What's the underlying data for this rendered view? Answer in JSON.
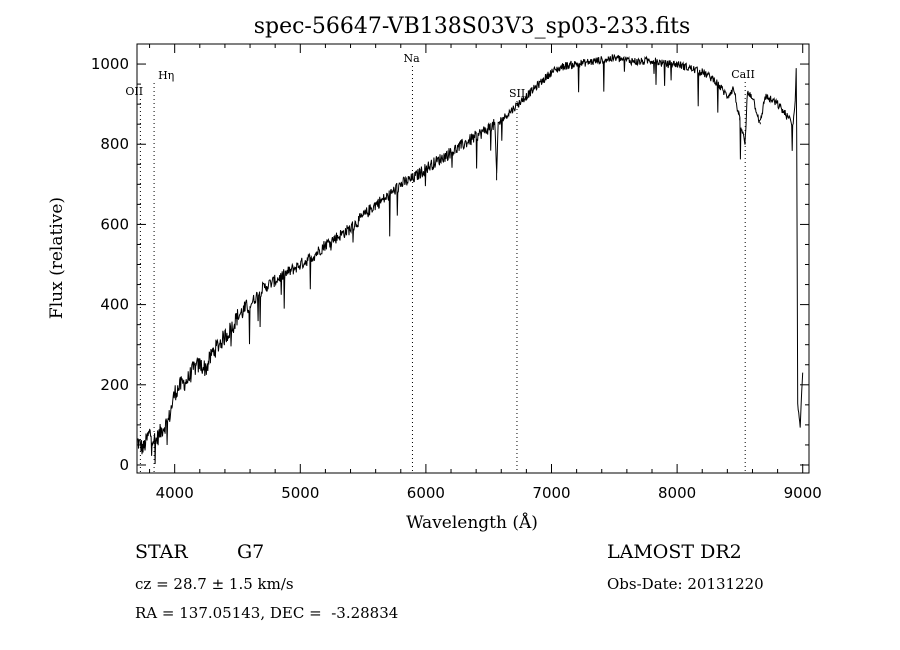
{
  "chart_data": {
    "type": "line",
    "title": "spec-56647-VB138S03V3_sp03-233.fits",
    "xlabel": "Wavelength (Å)",
    "ylabel": "Flux (relative)",
    "xlim": [
      3700,
      9050
    ],
    "ylim": [
      -20,
      1050
    ],
    "xticks": [
      4000,
      5000,
      6000,
      7000,
      8000,
      9000
    ],
    "yticks": [
      0,
      200,
      400,
      600,
      800,
      1000
    ],
    "grid": false,
    "series": [
      {
        "x": [
          3700,
          3750,
          3800,
          3850,
          3900,
          3950,
          4000,
          4050,
          4100,
          4150,
          4200,
          4250,
          4300,
          4350,
          4400,
          4450,
          4500,
          4600,
          4700,
          4800,
          4900,
          5000,
          5100,
          5200,
          5300,
          5400,
          5500,
          5600,
          5700,
          5800,
          5900,
          6000,
          6100,
          6200,
          6300,
          6400,
          6500,
          6550,
          6563,
          6575,
          6600,
          6700,
          6800,
          6900,
          7000,
          7100,
          7200,
          7300,
          7400,
          7500,
          7600,
          7700,
          7800,
          7900,
          8000,
          8100,
          8200,
          8300,
          8400,
          8450,
          8498,
          8542,
          8560,
          8600,
          8662,
          8700,
          8800,
          8850,
          8900,
          8920,
          8940,
          8950,
          8960,
          8980,
          9000
        ],
        "y": [
          60,
          40,
          80,
          60,
          90,
          110,
          180,
          200,
          210,
          240,
          250,
          240,
          280,
          300,
          320,
          340,
          370,
          400,
          440,
          460,
          480,
          500,
          520,
          550,
          570,
          590,
          620,
          650,
          670,
          700,
          715,
          740,
          760,
          780,
          800,
          820,
          840,
          850,
          710,
          850,
          860,
          890,
          920,
          950,
          980,
          995,
          1000,
          1005,
          1010,
          1015,
          1010,
          1005,
          1010,
          1000,
          1000,
          990,
          980,
          960,
          920,
          940,
          860,
          800,
          930,
          920,
          850,
          920,
          900,
          880,
          860,
          840,
          900,
          1000,
          150,
          100,
          240
        ]
      }
    ],
    "line_marks": [
      {
        "label": "Hη",
        "x": 3836
      },
      {
        "label": "OII",
        "x": 3727
      },
      {
        "label": "Na",
        "x": 5893
      },
      {
        "label": "SII",
        "x": 6725
      },
      {
        "label": "CaII",
        "x": 8542
      }
    ]
  },
  "info": {
    "object_class": "STAR",
    "subclass": "G7",
    "cz": "cz = 28.7 ± 1.5 km/s",
    "coords": "RA = 137.05143, DEC =  -3.28834",
    "survey": "LAMOST DR2",
    "obs_date": "Obs-Date: 20131220"
  }
}
